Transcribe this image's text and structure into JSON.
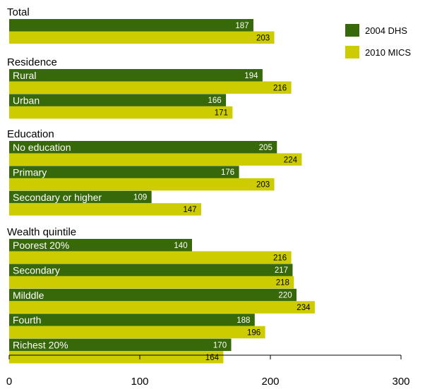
{
  "chart_data": {
    "type": "bar",
    "orientation": "horizontal",
    "xlim": [
      0,
      300
    ],
    "xticks": [
      0,
      100,
      200,
      300
    ],
    "grid": false,
    "legend_position": "top-right",
    "series": [
      {
        "name": "2004 DHS",
        "color": "#376809"
      },
      {
        "name": "2010 MICS",
        "color": "#cccc00"
      }
    ],
    "groups": [
      {
        "title": "Total",
        "rows": [
          {
            "label": "",
            "values": [
              187,
              203
            ]
          }
        ]
      },
      {
        "title": "Residence",
        "rows": [
          {
            "label": "Rural",
            "values": [
              194,
              216
            ]
          },
          {
            "label": "Urban",
            "values": [
              166,
              171
            ]
          }
        ]
      },
      {
        "title": "Education",
        "rows": [
          {
            "label": "No education",
            "values": [
              205,
              224
            ]
          },
          {
            "label": "Primary",
            "values": [
              176,
              203
            ]
          },
          {
            "label": "Secondary or higher",
            "values": [
              109,
              147
            ]
          }
        ]
      },
      {
        "title": "Wealth quintile",
        "rows": [
          {
            "label": "Poorest 20%",
            "values": [
              140,
              216
            ]
          },
          {
            "label": "Secondary",
            "values": [
              217,
              218
            ]
          },
          {
            "label": "Milddle",
            "values": [
              220,
              234
            ]
          },
          {
            "label": "Fourth",
            "values": [
              188,
              196
            ]
          },
          {
            "label": "Richest 20%",
            "values": [
              170,
              164
            ]
          }
        ]
      }
    ]
  }
}
